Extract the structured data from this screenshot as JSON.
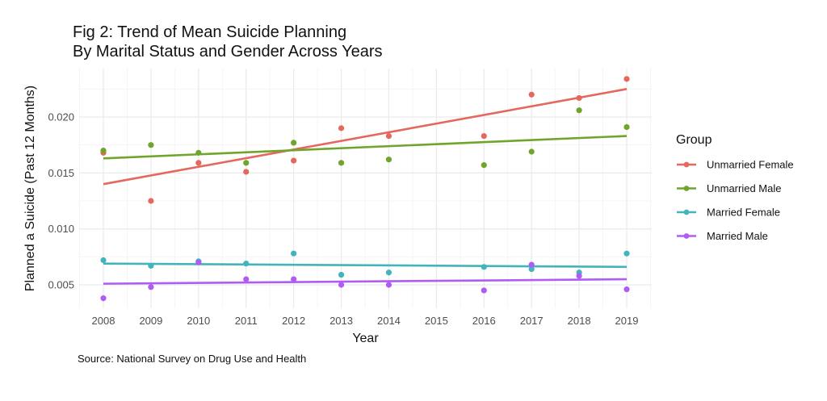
{
  "title_lines": [
    "Fig 2: Trend of Mean Suicide Planning",
    "By Marital Status and Gender Across Years"
  ],
  "caption": "Source: National Survey on Drug Use and Health",
  "chart_data": {
    "type": "scatter",
    "title": "Fig 2: Trend of Mean Suicide Planning By Marital Status and Gender Across Years",
    "xlabel": "Year",
    "ylabel": "Planned a Suicide (Past 12 Months)",
    "caption": "Source: National Survey on Drug Use and Health",
    "xlim": [
      2007.5,
      2019.5
    ],
    "ylim": [
      0.0028,
      0.0242
    ],
    "x_ticks": [
      2008,
      2009,
      2010,
      2011,
      2012,
      2013,
      2014,
      2015,
      2016,
      2017,
      2018,
      2019
    ],
    "y_ticks": [
      0.005,
      0.01,
      0.015,
      0.02
    ],
    "y_tick_labels": [
      "0.005",
      "0.010",
      "0.015",
      "0.020"
    ],
    "grid": true,
    "legend": {
      "title": "Group",
      "position": "right"
    },
    "series": [
      {
        "name": "Unmarried Female",
        "color": "#E5685F",
        "x": [
          2008,
          2009,
          2010,
          2011,
          2012,
          2013,
          2014,
          2016,
          2017,
          2018,
          2019
        ],
        "values": [
          0.0168,
          0.0125,
          0.0159,
          0.0151,
          0.0161,
          0.019,
          0.0183,
          0.0183,
          0.022,
          0.0217,
          0.0234
        ],
        "trend": {
          "x": [
            2008,
            2019
          ],
          "y": [
            0.014,
            0.0225
          ]
        }
      },
      {
        "name": "Unmarried Male",
        "color": "#6FA52B",
        "x": [
          2008,
          2009,
          2010,
          2011,
          2012,
          2013,
          2014,
          2016,
          2017,
          2018,
          2019
        ],
        "values": [
          0.017,
          0.0175,
          0.0168,
          0.0159,
          0.0177,
          0.0159,
          0.0162,
          0.0157,
          0.0169,
          0.0206,
          0.0191
        ],
        "trend": {
          "x": [
            2008,
            2019
          ],
          "y": [
            0.0163,
            0.0183
          ]
        }
      },
      {
        "name": "Married Female",
        "color": "#42B4BC",
        "x": [
          2008,
          2009,
          2010,
          2011,
          2012,
          2013,
          2014,
          2016,
          2017,
          2018,
          2019
        ],
        "values": [
          0.0072,
          0.0067,
          0.0071,
          0.0069,
          0.0078,
          0.0059,
          0.0061,
          0.0066,
          0.0064,
          0.0061,
          0.0078
        ],
        "trend": {
          "x": [
            2008,
            2019
          ],
          "y": [
            0.0069,
            0.0066
          ]
        }
      },
      {
        "name": "Married Male",
        "color": "#B05CF4",
        "x": [
          2008,
          2009,
          2010,
          2011,
          2012,
          2013,
          2014,
          2016,
          2017,
          2018,
          2019
        ],
        "values": [
          0.0038,
          0.0048,
          0.007,
          0.0055,
          0.0055,
          0.005,
          0.005,
          0.0045,
          0.0068,
          0.0058,
          0.0046
        ],
        "trend": {
          "x": [
            2008,
            2019
          ],
          "y": [
            0.0051,
            0.0055
          ]
        }
      }
    ]
  }
}
